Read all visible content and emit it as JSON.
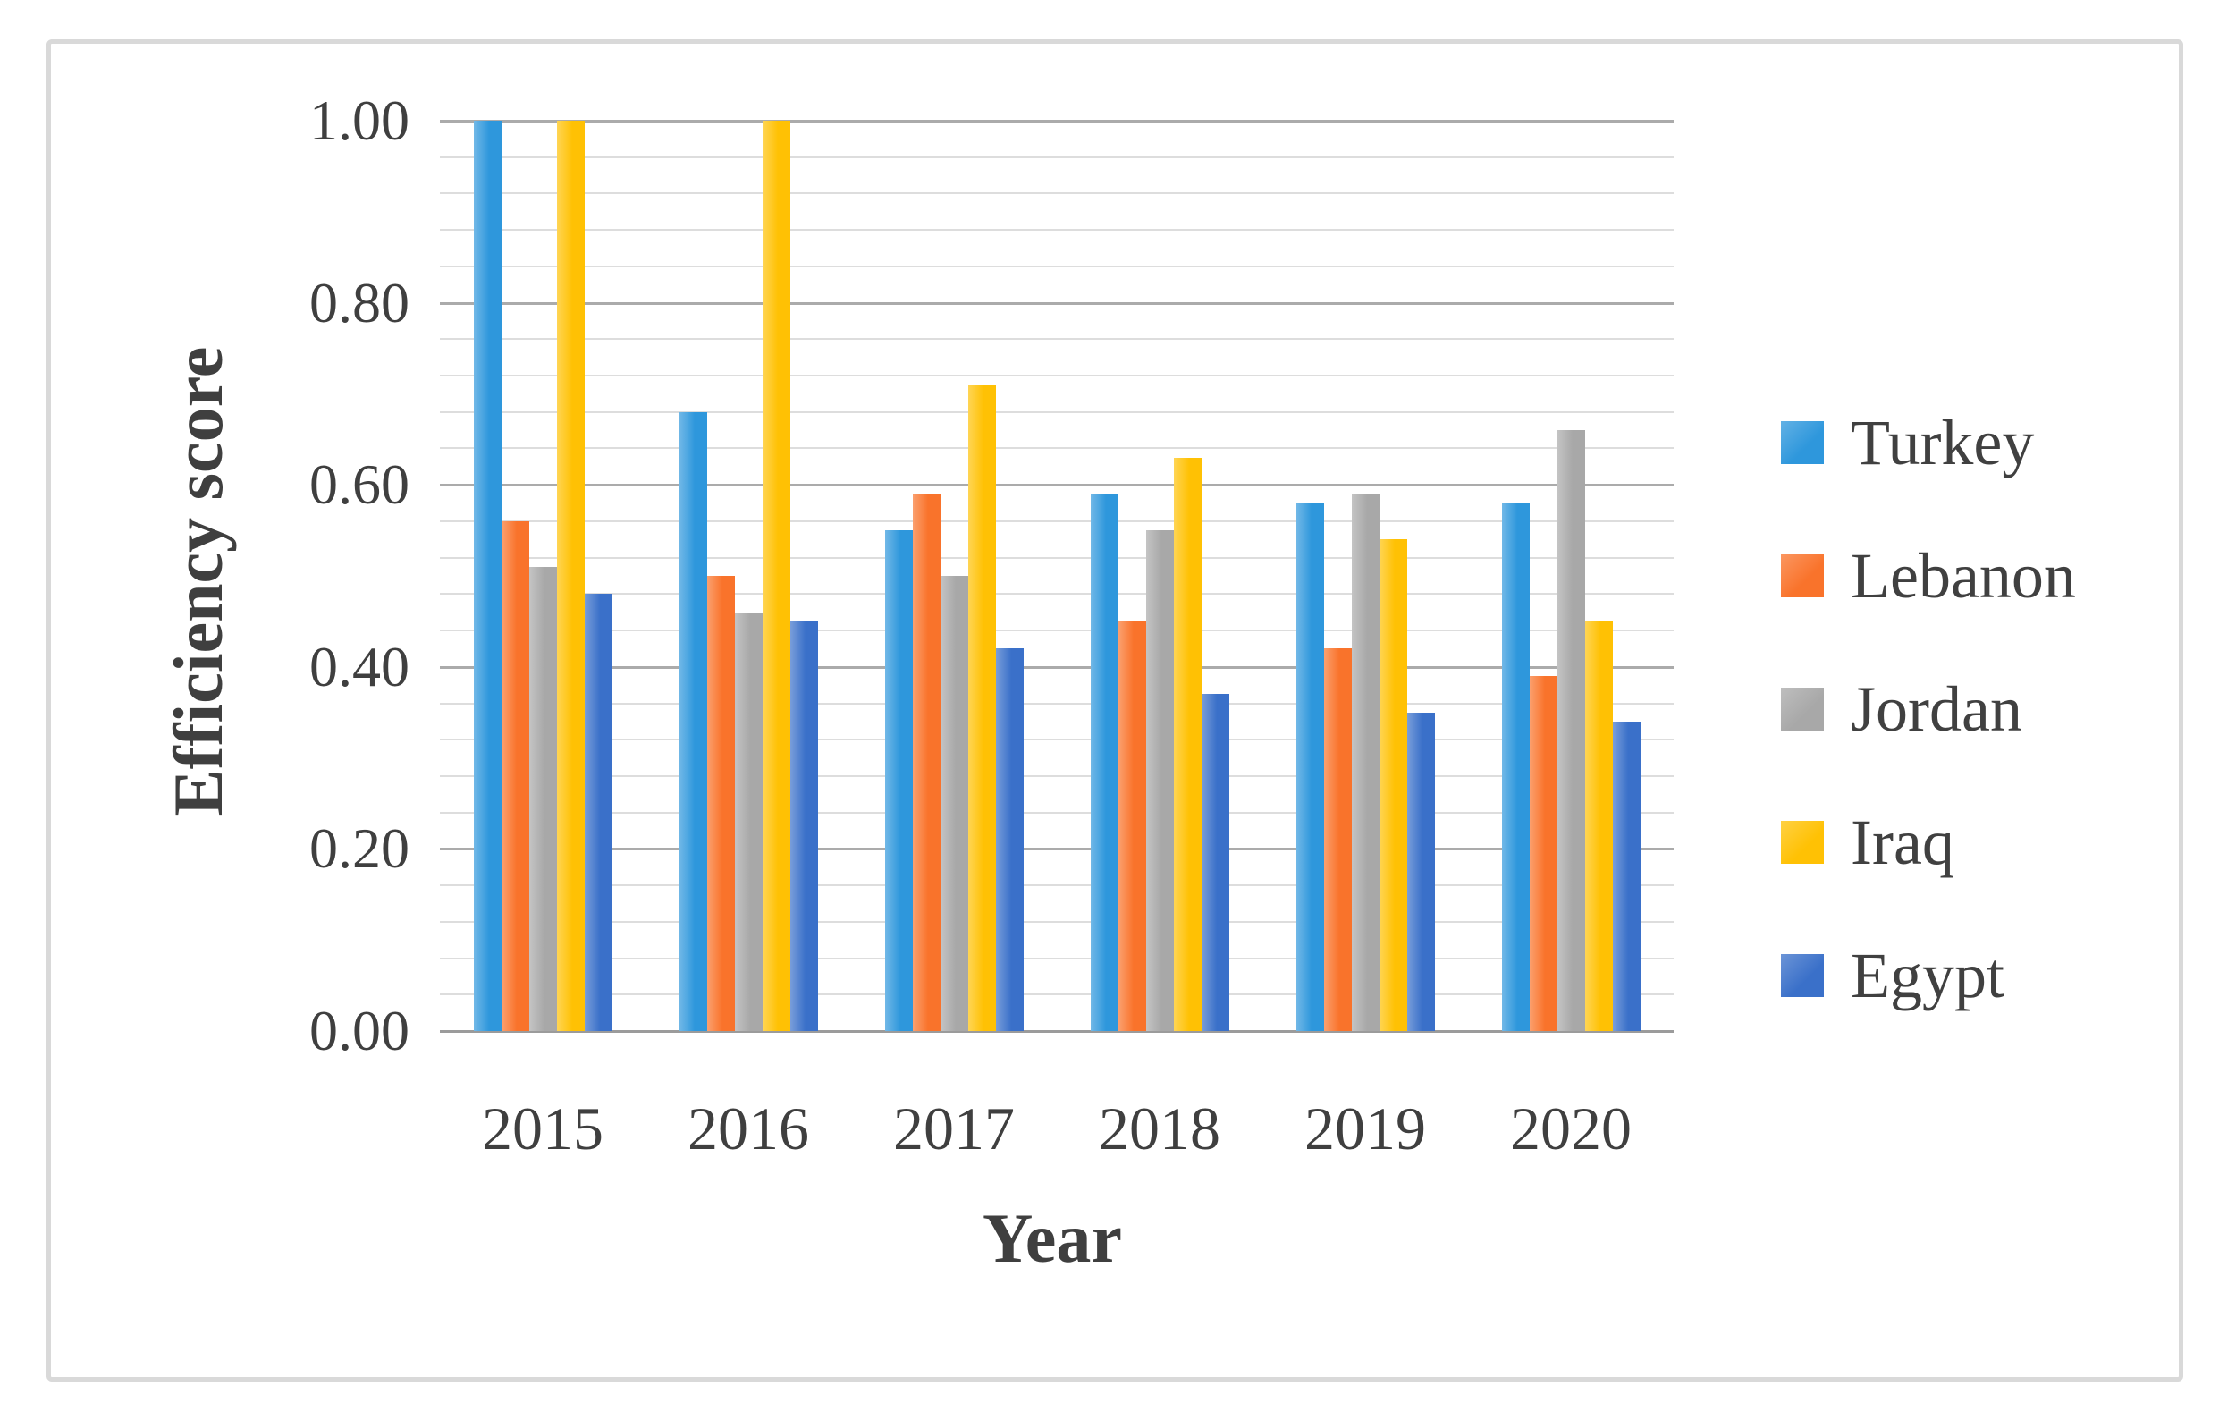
{
  "figure": {
    "background": "#FFFFFF",
    "border_color": "#D9D9D9"
  },
  "styles": {
    "text_color": "#3F3F3F",
    "minor_grid_color": "#DDDDDD",
    "major_grid_color": "#ABABAB",
    "axis_line_color": "#9B9B9B"
  },
  "chart_data": {
    "type": "bar",
    "title": "",
    "categories": [
      "2015",
      "2016",
      "2017",
      "2018",
      "2019",
      "2020"
    ],
    "series": [
      {
        "name": "Turkey",
        "color": "#2E97DC",
        "values": [
          1.0,
          0.68,
          0.55,
          0.59,
          0.58,
          0.58
        ]
      },
      {
        "name": "Lebanon",
        "color": "#F9732B",
        "values": [
          0.56,
          0.5,
          0.59,
          0.45,
          0.42,
          0.39
        ]
      },
      {
        "name": "Jordan",
        "color": "#A8A8A8",
        "values": [
          0.51,
          0.46,
          0.5,
          0.55,
          0.59,
          0.66
        ]
      },
      {
        "name": "Iraq",
        "color": "#FFC104",
        "values": [
          1.0,
          1.0,
          0.71,
          0.63,
          0.54,
          0.45
        ]
      },
      {
        "name": "Egypt",
        "color": "#3A70C9",
        "values": [
          0.48,
          0.45,
          0.42,
          0.37,
          0.35,
          0.34
        ]
      }
    ],
    "xlabel": "Year",
    "ylabel": "Efficiency score",
    "ylim": [
      0,
      1.0
    ],
    "y_major_step": 0.2,
    "y_minor_step": 0.04,
    "y_tick_labels": [
      "0.00",
      "0.20",
      "0.40",
      "0.60",
      "0.80",
      "1.00"
    ],
    "grid": "on",
    "legend_position": "right"
  }
}
